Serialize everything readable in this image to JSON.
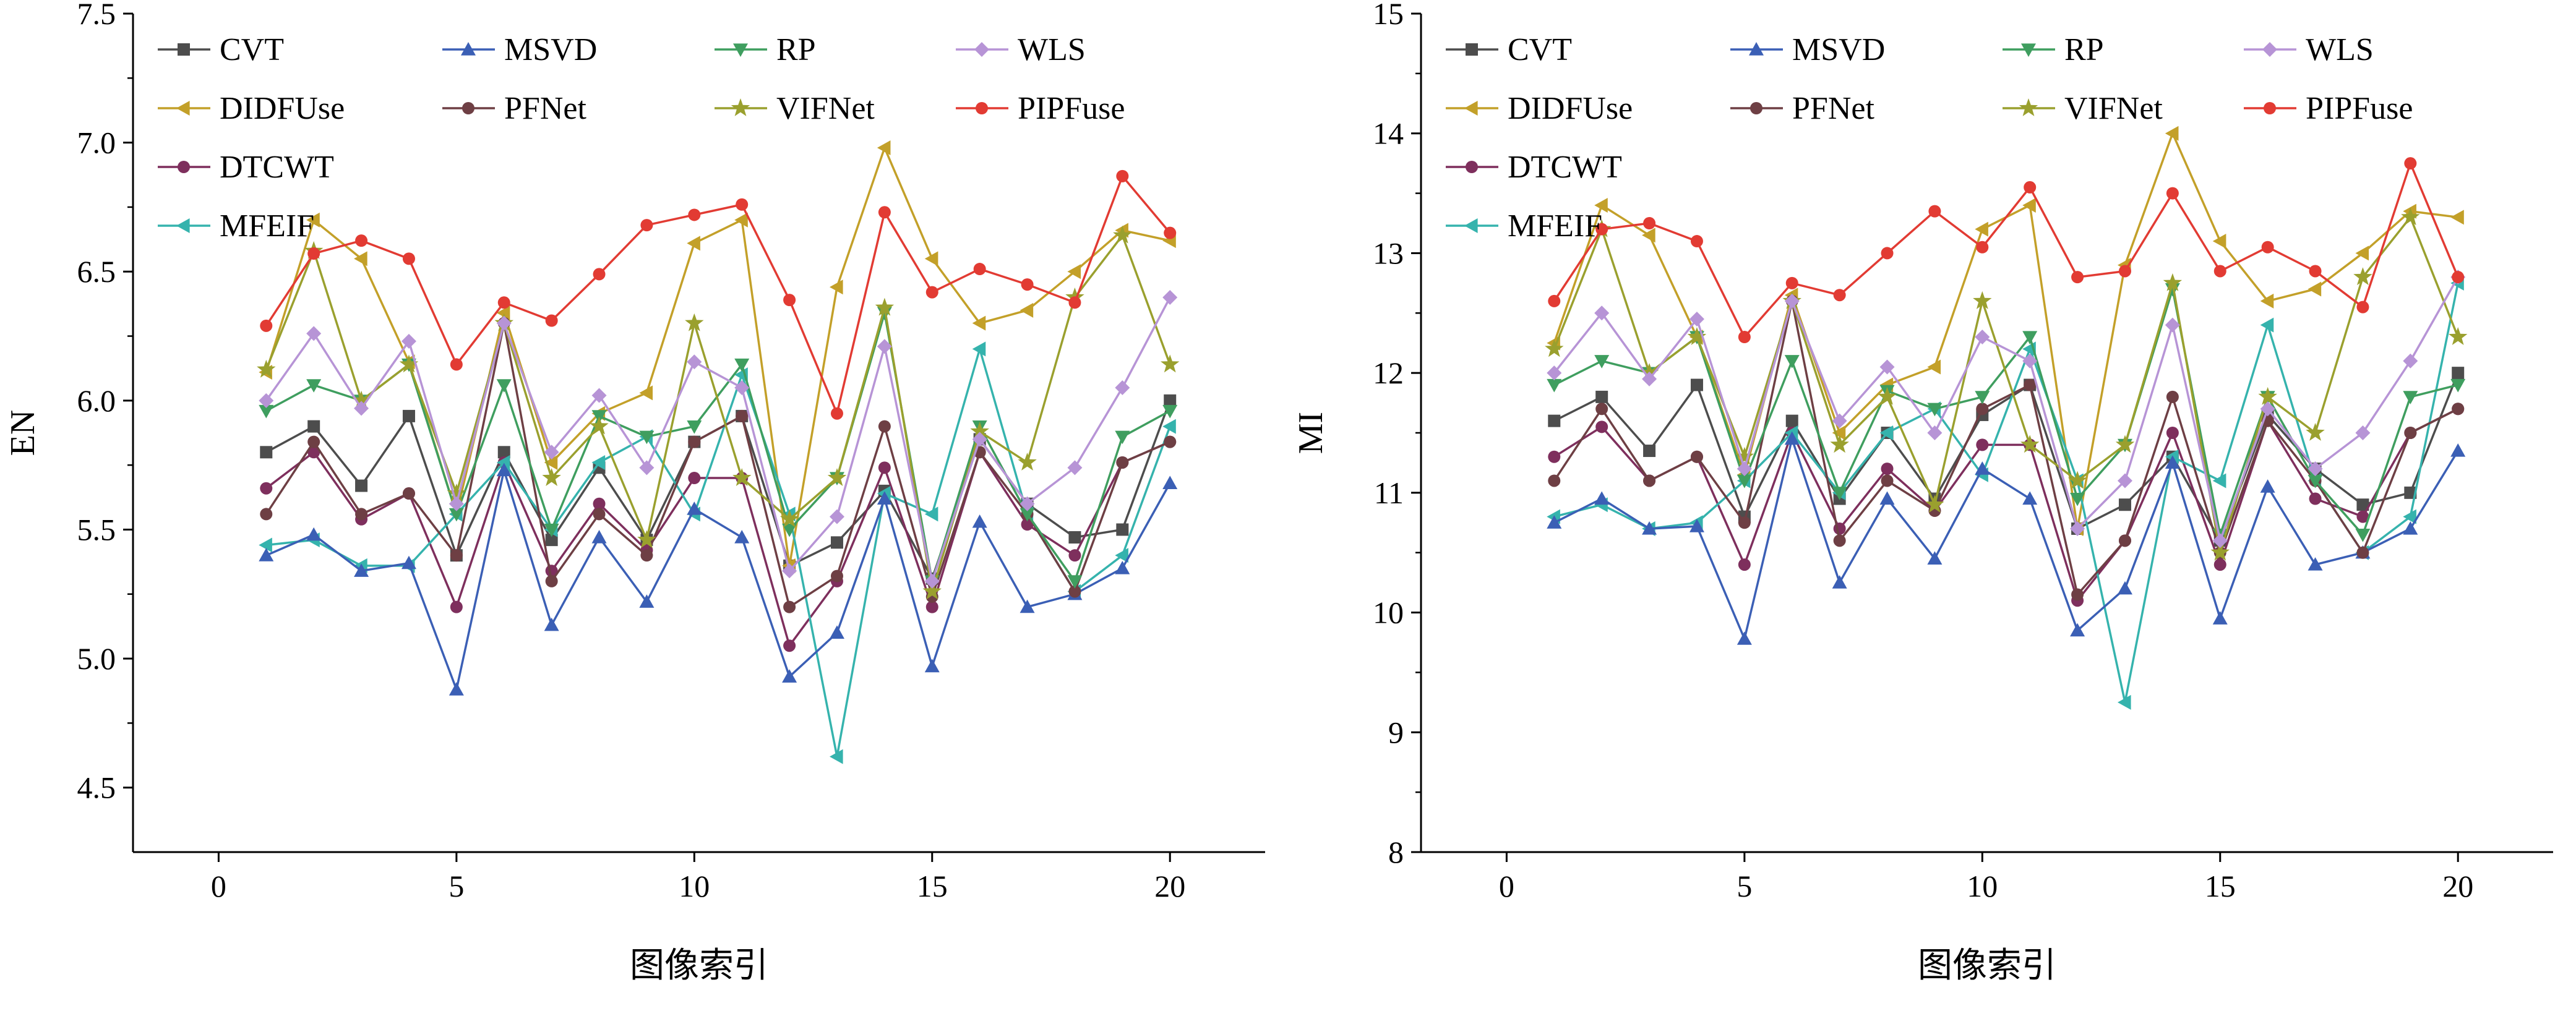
{
  "page": {
    "background": "#ffffff",
    "axis_color": "#000000"
  },
  "legend": {
    "columns": [
      [
        0,
        1,
        2,
        3
      ],
      [
        4,
        5
      ],
      [
        6,
        7
      ],
      [
        8,
        9
      ]
    ]
  },
  "chart_data": [
    {
      "type": "line",
      "title": "",
      "xlabel": "图像索引",
      "ylabel": "EN",
      "xlim": [
        -1.8,
        22
      ],
      "ylim": [
        4.25,
        7.5
      ],
      "xticks": [
        0,
        5,
        10,
        15,
        20
      ],
      "xtick_labels": [
        "0",
        "5",
        "10",
        "15",
        "20"
      ],
      "yticks": [
        4.5,
        5.0,
        5.5,
        6.0,
        6.5,
        7.0,
        7.5
      ],
      "ytick_labels": [
        "4.5",
        "5.0",
        "5.5",
        "6.0",
        "6.5",
        "7.0",
        "7.5"
      ],
      "x": [
        1,
        2,
        3,
        4,
        5,
        6,
        7,
        8,
        9,
        10,
        11,
        12,
        13,
        14,
        15,
        16,
        17,
        18,
        19,
        20
      ],
      "series": [
        {
          "name": "CVT",
          "color": "#4d4d4d",
          "marker": "square",
          "values": [
            5.8,
            5.9,
            5.67,
            5.94,
            5.4,
            5.8,
            5.46,
            5.74,
            5.46,
            5.84,
            5.94,
            5.36,
            5.45,
            5.65,
            5.31,
            5.85,
            5.6,
            5.47,
            5.5,
            6.0
          ]
        },
        {
          "name": "DIDFUse",
          "color": "#c3a029",
          "marker": "triangle-left",
          "values": [
            6.11,
            6.7,
            6.55,
            6.15,
            5.56,
            6.34,
            5.76,
            5.95,
            6.03,
            6.61,
            6.7,
            5.36,
            6.44,
            6.98,
            6.55,
            6.3,
            6.35,
            6.5,
            6.66,
            6.62
          ]
        },
        {
          "name": "DTCWT",
          "color": "#7e2f5d",
          "marker": "circle",
          "values": [
            5.66,
            5.8,
            5.54,
            5.64,
            5.2,
            5.76,
            5.34,
            5.6,
            5.42,
            5.7,
            5.7,
            5.05,
            5.3,
            5.74,
            5.2,
            5.8,
            5.52,
            5.4,
            5.76,
            5.84
          ]
        },
        {
          "name": "MFEIF",
          "color": "#35b3ad",
          "marker": "triangle-left",
          "values": [
            5.44,
            5.46,
            5.36,
            5.36,
            5.56,
            5.76,
            5.5,
            5.76,
            5.86,
            5.56,
            6.1,
            5.56,
            4.62,
            5.64,
            5.56,
            6.2,
            5.56,
            5.26,
            5.4,
            5.9
          ]
        },
        {
          "name": "MSVD",
          "color": "#3b5fb5",
          "marker": "triangle-up",
          "values": [
            5.4,
            5.48,
            5.34,
            5.37,
            4.88,
            5.73,
            5.13,
            5.47,
            5.22,
            5.58,
            5.47,
            4.93,
            5.1,
            5.62,
            4.97,
            5.53,
            5.2,
            5.25,
            5.35,
            5.68
          ]
        },
        {
          "name": "PFNet",
          "color": "#6e3f44",
          "marker": "circle",
          "values": [
            5.56,
            5.84,
            5.56,
            5.64,
            5.4,
            6.3,
            5.3,
            5.56,
            5.4,
            5.84,
            5.94,
            5.2,
            5.32,
            5.9,
            5.24,
            5.8,
            5.56,
            5.26,
            5.76,
            5.84
          ]
        },
        {
          "name": "RP",
          "color": "#3f9e5f",
          "marker": "triangle-down",
          "values": [
            5.96,
            6.06,
            6.0,
            6.14,
            5.56,
            6.06,
            5.5,
            5.94,
            5.86,
            5.9,
            6.14,
            5.5,
            5.7,
            6.34,
            5.3,
            5.9,
            5.56,
            5.3,
            5.86,
            5.96
          ]
        },
        {
          "name": "VIFNet",
          "color": "#9aa02e",
          "marker": "star",
          "values": [
            6.12,
            6.58,
            6.0,
            6.14,
            5.64,
            6.3,
            5.7,
            5.9,
            5.46,
            6.3,
            5.7,
            5.54,
            5.7,
            6.36,
            5.26,
            5.88,
            5.76,
            6.4,
            6.64,
            6.14
          ]
        },
        {
          "name": "WLS",
          "color": "#b794d6",
          "marker": "diamond",
          "values": [
            6.0,
            6.26,
            5.97,
            6.23,
            5.6,
            6.3,
            5.8,
            6.02,
            5.74,
            6.15,
            6.05,
            5.34,
            5.55,
            6.21,
            5.3,
            5.85,
            5.6,
            5.74,
            6.05,
            6.4
          ]
        },
        {
          "name": "PIPFuse",
          "color": "#e23b33",
          "marker": "circle",
          "values": [
            6.29,
            6.57,
            6.62,
            6.55,
            6.14,
            6.38,
            6.31,
            6.49,
            6.68,
            6.72,
            6.76,
            6.39,
            5.95,
            6.73,
            6.42,
            6.51,
            6.45,
            6.38,
            6.87,
            6.65
          ]
        }
      ]
    },
    {
      "type": "line",
      "title": "",
      "xlabel": "图像索引",
      "ylabel": "MI",
      "xlim": [
        -1.8,
        22
      ],
      "ylim": [
        8,
        15
      ],
      "xticks": [
        0,
        5,
        10,
        15,
        20
      ],
      "xtick_labels": [
        "0",
        "5",
        "10",
        "15",
        "20"
      ],
      "yticks": [
        8,
        9,
        10,
        11,
        12,
        13,
        14,
        15
      ],
      "ytick_labels": [
        "8",
        "9",
        "10",
        "11",
        "12",
        "13",
        "14",
        "15"
      ],
      "x": [
        1,
        2,
        3,
        4,
        5,
        6,
        7,
        8,
        9,
        10,
        11,
        12,
        13,
        14,
        15,
        16,
        17,
        18,
        19,
        20
      ],
      "series": [
        {
          "name": "CVT",
          "color": "#4d4d4d",
          "marker": "square",
          "values": [
            11.6,
            11.8,
            11.35,
            11.9,
            10.8,
            11.6,
            10.95,
            11.5,
            10.95,
            11.65,
            11.9,
            10.7,
            10.9,
            11.3,
            10.6,
            11.65,
            11.2,
            10.9,
            11.0,
            12.0
          ]
        },
        {
          "name": "DIDFUse",
          "color": "#c3a029",
          "marker": "triangle-left",
          "values": [
            12.25,
            13.4,
            13.15,
            12.3,
            11.15,
            12.65,
            11.5,
            11.9,
            12.05,
            13.2,
            13.4,
            10.7,
            12.9,
            14.0,
            13.1,
            12.6,
            12.7,
            13.0,
            13.35,
            13.3
          ]
        },
        {
          "name": "DTCWT",
          "color": "#7e2f5d",
          "marker": "circle",
          "values": [
            11.3,
            11.55,
            11.1,
            11.3,
            10.4,
            11.5,
            10.7,
            11.2,
            10.85,
            11.4,
            11.4,
            10.1,
            10.6,
            11.5,
            10.4,
            11.6,
            10.95,
            10.8,
            11.5,
            11.7
          ]
        },
        {
          "name": "MFEIF",
          "color": "#35b3ad",
          "marker": "triangle-left",
          "values": [
            10.8,
            10.9,
            10.7,
            10.75,
            11.1,
            11.5,
            11.0,
            11.5,
            11.7,
            11.15,
            12.2,
            11.1,
            9.25,
            11.3,
            11.1,
            12.4,
            11.1,
            10.5,
            10.8,
            12.75
          ]
        },
        {
          "name": "MSVD",
          "color": "#3b5fb5",
          "marker": "triangle-up",
          "values": [
            10.75,
            10.95,
            10.7,
            10.72,
            9.78,
            11.45,
            10.25,
            10.95,
            10.45,
            11.2,
            10.95,
            9.85,
            10.2,
            11.25,
            9.95,
            11.05,
            10.4,
            10.5,
            10.7,
            11.35
          ]
        },
        {
          "name": "PFNet",
          "color": "#6e3f44",
          "marker": "circle",
          "values": [
            11.1,
            11.7,
            11.1,
            11.3,
            10.75,
            12.6,
            10.6,
            11.1,
            10.85,
            11.7,
            11.9,
            10.15,
            10.6,
            11.8,
            10.5,
            11.6,
            11.1,
            10.5,
            11.5,
            11.7
          ]
        },
        {
          "name": "RP",
          "color": "#3f9e5f",
          "marker": "triangle-down",
          "values": [
            11.9,
            12.1,
            12.0,
            12.3,
            11.1,
            12.1,
            11.0,
            11.85,
            11.7,
            11.8,
            12.3,
            10.95,
            11.4,
            12.7,
            10.65,
            11.8,
            11.1,
            10.65,
            11.8,
            11.9
          ]
        },
        {
          "name": "VIFNet",
          "color": "#9aa02e",
          "marker": "star",
          "values": [
            12.2,
            13.2,
            12.0,
            12.3,
            11.3,
            12.6,
            11.4,
            11.8,
            10.9,
            12.6,
            11.4,
            11.1,
            11.4,
            12.75,
            10.5,
            11.8,
            11.5,
            12.8,
            13.3,
            12.3
          ]
        },
        {
          "name": "WLS",
          "color": "#b794d6",
          "marker": "diamond",
          "values": [
            12.0,
            12.5,
            11.95,
            12.45,
            11.2,
            12.6,
            11.6,
            12.05,
            11.5,
            12.3,
            12.1,
            10.7,
            11.1,
            12.4,
            10.6,
            11.7,
            11.2,
            11.5,
            12.1,
            12.8
          ]
        },
        {
          "name": "PIPFuse",
          "color": "#e23b33",
          "marker": "circle",
          "values": [
            12.6,
            13.2,
            13.25,
            13.1,
            12.3,
            12.75,
            12.65,
            13.0,
            13.35,
            13.05,
            13.55,
            12.8,
            12.85,
            13.5,
            12.85,
            13.05,
            12.85,
            12.55,
            13.75,
            12.8
          ]
        }
      ]
    }
  ]
}
